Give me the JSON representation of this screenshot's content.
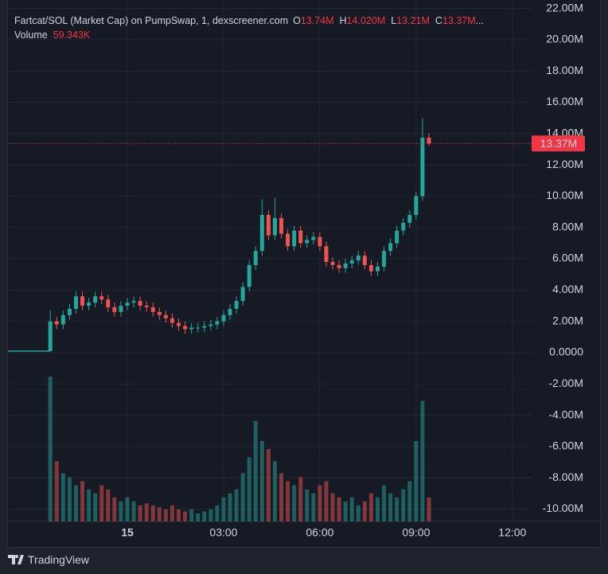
{
  "chart_data": {
    "type": "candlestick",
    "legend": {
      "title": "Fartcat/SOL (Market Cap) on PumpSwap, 1, dexscreener.com",
      "items": [
        {
          "key": "O",
          "value": 13.74,
          "label": "13.74M"
        },
        {
          "key": "H",
          "value": 14.02,
          "label": "14.020M"
        },
        {
          "key": "L",
          "value": 13.21,
          "label": "13.21M"
        },
        {
          "key": "C",
          "value": 13.37,
          "label": "13.37M"
        }
      ],
      "truncation": "...",
      "volume_key": "Volume",
      "volume_value": 59.343,
      "volume_label": "59.343K"
    },
    "last_price": {
      "value": 13.37,
      "label": "13.37M"
    },
    "up_color": "#26a69a",
    "down_color": "#ef5350",
    "xlim": [
      -3.72,
      12.6
    ],
    "xticks": [
      {
        "value": 0,
        "label": "15"
      },
      {
        "value": 3,
        "label": "03:00"
      },
      {
        "value": 6,
        "label": "06:00"
      },
      {
        "value": 9,
        "label": "09:00"
      },
      {
        "value": 12,
        "label": "12:00"
      }
    ],
    "ylim": [
      -10.79,
      22.54
    ],
    "yticks": [
      {
        "value": 22,
        "label": "22.00M"
      },
      {
        "value": 20,
        "label": "20.00M"
      },
      {
        "value": 18,
        "label": "18.00M"
      },
      {
        "value": 16,
        "label": "16.00M"
      },
      {
        "value": 14,
        "label": "14.00M"
      },
      {
        "value": 12,
        "label": "12.00M"
      },
      {
        "value": 10,
        "label": "10.00M"
      },
      {
        "value": 8,
        "label": "8.00M"
      },
      {
        "value": 6,
        "label": "6.00M"
      },
      {
        "value": 4,
        "label": "4.00M"
      },
      {
        "value": 2,
        "label": "2.00M"
      },
      {
        "value": 0,
        "label": "0.0000"
      },
      {
        "value": -2,
        "label": "-2.00M"
      },
      {
        "value": -4,
        "label": "-4.00M"
      },
      {
        "value": -6,
        "label": "-6.00M"
      },
      {
        "value": -8,
        "label": "-8.00M"
      },
      {
        "value": -10,
        "label": "-10.00M"
      }
    ],
    "grid": true,
    "lead_line": {
      "x": [
        -3.72,
        -2.4
      ],
      "values": [
        0.1,
        0.1
      ]
    },
    "x": [
      -2.4,
      -2.2,
      -2,
      -1.8,
      -1.6,
      -1.4,
      -1.2,
      -1,
      -0.8,
      -0.6,
      -0.4,
      -0.2,
      0,
      0.2,
      0.4,
      0.6,
      0.8,
      1,
      1.2,
      1.4,
      1.6,
      1.8,
      2,
      2.2,
      2.4,
      2.6,
      2.8,
      3,
      3.2,
      3.4,
      3.6,
      3.8,
      4,
      4.2,
      4.4,
      4.6,
      4.8,
      5,
      5.2,
      5.4,
      5.6,
      5.8,
      6,
      6.2,
      6.4,
      6.6,
      6.8,
      7,
      7.2,
      7.4,
      7.6,
      7.8,
      8,
      8.2,
      8.4,
      8.6,
      8.8,
      9,
      9.2,
      9.4
    ],
    "open": [
      0.1,
      2.0,
      1.8,
      2.4,
      2.8,
      3.6,
      3.0,
      3.2,
      3.6,
      3.4,
      2.9,
      2.6,
      3.0,
      3.2,
      3.3,
      3.0,
      2.9,
      2.6,
      2.4,
      2.2,
      1.9,
      1.7,
      1.5,
      1.6,
      1.6,
      1.7,
      1.8,
      2.0,
      2.4,
      2.8,
      3.3,
      4.2,
      5.6,
      6.5,
      8.8,
      7.5,
      8.6,
      7.6,
      6.8,
      7.8,
      7.0,
      7.2,
      7.4,
      6.8,
      5.8,
      5.6,
      5.4,
      5.7,
      5.9,
      6.2,
      5.6,
      5.2,
      5.5,
      6.5,
      7.0,
      7.8,
      8.3,
      8.8,
      10.0,
      13.74
    ],
    "high": [
      2.7,
      2.3,
      2.7,
      3.1,
      3.9,
      3.9,
      3.5,
      3.9,
      3.9,
      3.7,
      3.2,
      3.3,
      3.5,
      3.6,
      3.6,
      3.3,
      3.2,
      2.9,
      2.7,
      2.5,
      2.2,
      2.0,
      1.9,
      1.9,
      2.0,
      2.1,
      2.3,
      2.7,
      3.1,
      3.6,
      4.5,
      5.9,
      6.8,
      9.8,
      9.1,
      9.9,
      8.9,
      7.9,
      8.1,
      8.1,
      7.5,
      7.7,
      7.7,
      7.1,
      6.1,
      5.9,
      6.0,
      6.2,
      6.5,
      6.5,
      5.9,
      5.8,
      6.8,
      7.3,
      8.1,
      8.6,
      9.1,
      10.3,
      15.0,
      14.02
    ],
    "low": [
      0.1,
      1.5,
      1.5,
      2.1,
      2.5,
      2.7,
      2.7,
      2.9,
      3.1,
      2.6,
      2.3,
      2.3,
      2.7,
      2.9,
      2.7,
      2.6,
      2.3,
      2.1,
      1.9,
      1.6,
      1.4,
      1.2,
      1.2,
      1.3,
      1.3,
      1.4,
      1.5,
      1.7,
      2.1,
      2.5,
      3.0,
      3.9,
      5.3,
      6.2,
      7.2,
      7.2,
      7.3,
      6.5,
      6.5,
      6.7,
      6.7,
      6.9,
      6.5,
      5.5,
      5.3,
      5.1,
      5.1,
      5.4,
      5.6,
      5.3,
      4.9,
      4.9,
      5.2,
      6.2,
      6.7,
      7.5,
      8.0,
      8.5,
      9.7,
      13.21
    ],
    "close": [
      2.0,
      1.8,
      2.4,
      2.8,
      3.6,
      3.0,
      3.2,
      3.6,
      3.4,
      2.9,
      2.6,
      3.0,
      3.2,
      3.3,
      3.0,
      2.9,
      2.6,
      2.4,
      2.2,
      1.9,
      1.7,
      1.5,
      1.6,
      1.6,
      1.7,
      1.8,
      2.0,
      2.4,
      2.8,
      3.3,
      4.2,
      5.6,
      6.5,
      8.8,
      7.5,
      8.6,
      7.6,
      6.8,
      7.8,
      7.0,
      7.2,
      7.4,
      6.8,
      5.8,
      5.6,
      5.4,
      5.7,
      5.9,
      6.2,
      5.6,
      5.2,
      5.5,
      6.5,
      7.0,
      7.8,
      8.3,
      8.8,
      10.0,
      13.74,
      13.37
    ],
    "volume": [
      360,
      150,
      120,
      110,
      90,
      100,
      80,
      70,
      90,
      80,
      60,
      50,
      60,
      50,
      40,
      45,
      40,
      35,
      30,
      40,
      30,
      25,
      30,
      20,
      25,
      30,
      40,
      60,
      70,
      80,
      120,
      160,
      250,
      200,
      180,
      150,
      120,
      100,
      90,
      110,
      80,
      70,
      90,
      100,
      70,
      60,
      50,
      60,
      40,
      50,
      70,
      60,
      90,
      70,
      60,
      80,
      100,
      200,
      300,
      59.343
    ],
    "vlim": [
      0,
      400
    ]
  },
  "footer": "TradingView"
}
